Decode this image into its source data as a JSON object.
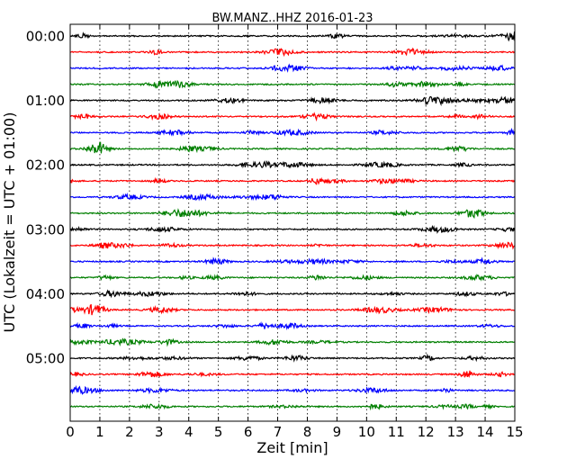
{
  "chart_data": {
    "type": "line",
    "title": "BW.MANZ..HHZ 2016-01-23",
    "xlabel": "Zeit  [min]",
    "ylabel": "UTC (Lokalzeit = UTC + 01:00)",
    "xlim": [
      0,
      15
    ],
    "x_ticks": [
      0,
      1,
      2,
      3,
      4,
      5,
      6,
      7,
      8,
      9,
      10,
      11,
      12,
      13,
      14,
      15
    ],
    "x_tick_labels": [
      "0",
      "1",
      "2",
      "3",
      "4",
      "5",
      "6",
      "7",
      "8",
      "9",
      "10",
      "11",
      "12",
      "13",
      "14",
      "15"
    ],
    "y_tick_labels": [
      "00:00",
      "01:00",
      "02:00",
      "03:00",
      "04:00",
      "05:00"
    ],
    "traces_per_hour": 4,
    "trace_minutes": 15,
    "trace_start_times": [
      "00:00",
      "00:15",
      "00:30",
      "00:45",
      "01:00",
      "01:15",
      "01:30",
      "01:45",
      "02:00",
      "02:15",
      "02:30",
      "02:45",
      "03:00",
      "03:15",
      "03:30",
      "03:45",
      "04:00",
      "04:15",
      "04:30",
      "04:45",
      "05:00",
      "05:15",
      "05:30",
      "05:45"
    ],
    "trace_colors": [
      "#000000",
      "#ff0000",
      "#0000ff",
      "#007f00"
    ],
    "grid": {
      "x": true,
      "y": false,
      "style": "dotted"
    }
  }
}
